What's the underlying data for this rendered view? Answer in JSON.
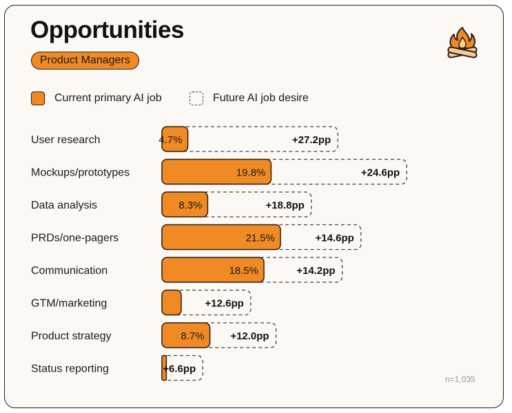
{
  "title": "Opportunities",
  "badge": "Product Managers",
  "logo_icon": "campfire-icon",
  "legend": {
    "current": "Current primary AI job",
    "future": "Future AI job desire"
  },
  "note": "n=1,035",
  "colors": {
    "accent": "#f08a24",
    "outline": "#2a1e16",
    "background": "#fcf8f3"
  },
  "chart_data": {
    "type": "bar",
    "orientation": "horizontal",
    "stacked": true,
    "title": "Opportunities",
    "subtitle": "Product Managers",
    "categories": [
      "User research",
      "Mockups/prototypes",
      "Data analysis",
      "PRDs/one-pagers",
      "Communication",
      "GTM/marketing",
      "Product strategy",
      "Status reporting"
    ],
    "series": [
      {
        "name": "Current primary AI job",
        "values": [
          4.7,
          19.8,
          8.3,
          21.5,
          18.5,
          3.5,
          8.7,
          0.8
        ]
      },
      {
        "name": "Future AI job desire",
        "values": [
          27.2,
          24.6,
          18.8,
          14.6,
          14.2,
          12.6,
          12.0,
          6.6
        ]
      }
    ],
    "value_labels": [
      "4.7%",
      "19.8%",
      "8.3%",
      "21.5%",
      "18.5%",
      "",
      "8.7%",
      ""
    ],
    "delta_labels": [
      "+27.2pp",
      "+24.6pp",
      "+18.8pp",
      "+14.6pp",
      "+14.2pp",
      "+12.6pp",
      "+12.0pp",
      "+6.6pp"
    ],
    "xlim": [
      0,
      50
    ],
    "legend_position": "top-left"
  }
}
